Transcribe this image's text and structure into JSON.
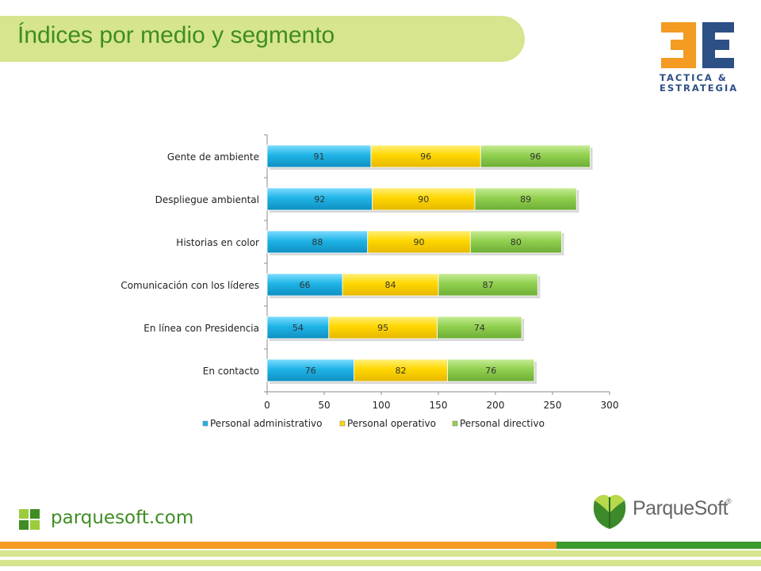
{
  "title": "Índices por medio y segmento",
  "brand": {
    "logo_letters": "3E",
    "logo_line1": "TACTICA &",
    "logo_line2": "ESTRATEGIA",
    "website": "parquesoft.com",
    "parquesoft_name": "ParqueSoft",
    "registered": "®"
  },
  "colors": {
    "title_band": "#d6e58e",
    "title_text": "#3e8d1f",
    "series_admin": "#1fb4e6",
    "series_operativo": "#ffd700",
    "series_directivo": "#92d050",
    "footer_orange": "#f39b22",
    "footer_green": "#3d9a2d"
  },
  "chart_data": {
    "type": "bar",
    "orientation": "horizontal",
    "stacked": true,
    "categories": [
      "Gente de ambiente",
      "Despliegue ambiental",
      "Historias en color",
      "Comunicación con los líderes",
      "En línea con Presidencia",
      "En contacto"
    ],
    "series": [
      {
        "name": "Personal administrativo",
        "color": "#1fb4e6",
        "values": [
          91,
          92,
          88,
          66,
          54,
          76
        ]
      },
      {
        "name": "Personal operativo",
        "color": "#ffd700",
        "values": [
          96,
          90,
          90,
          84,
          95,
          82
        ]
      },
      {
        "name": "Personal directivo",
        "color": "#92d050",
        "values": [
          96,
          89,
          80,
          87,
          74,
          76
        ]
      }
    ],
    "xlim": [
      0,
      300
    ],
    "xticks": [
      "0",
      "50",
      "100",
      "150",
      "200",
      "250",
      "300"
    ],
    "legend": "bottom",
    "grid": false
  }
}
